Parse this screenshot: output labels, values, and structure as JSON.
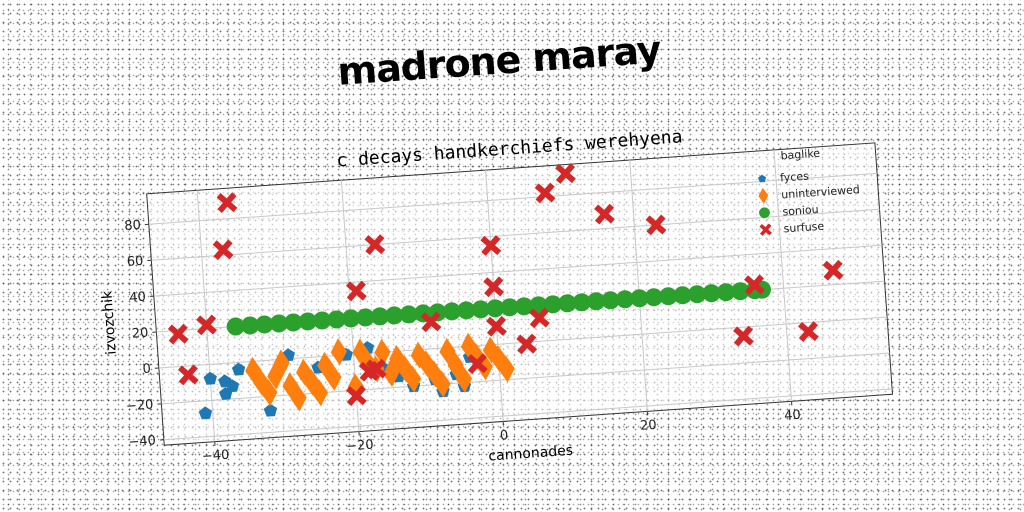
{
  "header": {
    "title": "madrone maray"
  },
  "chart_data": {
    "type": "scatter",
    "title": "c decays handkerchiefs werehyena",
    "xlabel": "cannonades",
    "ylabel": "izvozchik",
    "xlim": [
      -47,
      54
    ],
    "ylim": [
      -43,
      97
    ],
    "xticks": [
      -40,
      -20,
      0,
      20,
      40
    ],
    "yticks": [
      -40,
      -20,
      0,
      20,
      40,
      60,
      80
    ],
    "grid": true,
    "legend": {
      "title": "baglike",
      "position": "top-right",
      "entries": [
        "fyces",
        "uninterviewed",
        "soniou",
        "surfuse"
      ]
    },
    "series": [
      {
        "name": "fyces",
        "marker": "pentagon",
        "color": "#1f77b4",
        "points": [
          [
            -41,
            -27
          ],
          [
            -40,
            -8
          ],
          [
            -38,
            -10
          ],
          [
            -38,
            -17
          ],
          [
            -37,
            -13
          ],
          [
            -36,
            -4
          ],
          [
            -32,
            -28
          ],
          [
            -30,
            -3
          ],
          [
            -29,
            2
          ],
          [
            -27,
            -9
          ],
          [
            -25,
            -6
          ],
          [
            -23,
            -12
          ],
          [
            -21,
            0
          ],
          [
            -20,
            -18
          ],
          [
            -18,
            3
          ],
          [
            -16,
            -9
          ],
          [
            -14,
            -14
          ],
          [
            -12,
            -20
          ],
          [
            -9,
            -17
          ],
          [
            -8,
            -24
          ],
          [
            -6,
            -15
          ],
          [
            -5,
            -22
          ],
          [
            -4,
            -6
          ]
        ]
      },
      {
        "name": "uninterviewed",
        "marker": "diamond",
        "color": "#ff7f0e",
        "points": [
          [
            -34,
            -5
          ],
          [
            -33,
            -12
          ],
          [
            -32,
            -18
          ],
          [
            -31,
            -9
          ],
          [
            -30,
            -2
          ],
          [
            -29,
            -15
          ],
          [
            -28,
            -22
          ],
          [
            -27,
            -8
          ],
          [
            -26,
            -14
          ],
          [
            -25,
            -20
          ],
          [
            -24,
            -5
          ],
          [
            -23,
            -12
          ],
          [
            -22,
            2
          ],
          [
            -20,
            -18
          ],
          [
            -18,
            -6
          ],
          [
            -16,
            0
          ],
          [
            -15,
            -12
          ],
          [
            -14,
            -4
          ],
          [
            -13,
            -10
          ],
          [
            -12,
            -16
          ],
          [
            -11,
            -3
          ],
          [
            -10,
            -8
          ],
          [
            -9,
            -14
          ],
          [
            -8,
            -20
          ],
          [
            -7,
            -2
          ],
          [
            -6,
            -10
          ],
          [
            -5,
            -18
          ],
          [
            -4,
            0
          ],
          [
            -3,
            -6
          ],
          [
            -2,
            -12
          ],
          [
            -1,
            -3
          ],
          [
            0,
            -8
          ],
          [
            1,
            -14
          ],
          [
            -17,
            -9
          ],
          [
            -19,
            1
          ]
        ]
      },
      {
        "name": "soniou",
        "marker": "circle",
        "color": "#2ca02c",
        "points": [
          [
            -36,
            20
          ],
          [
            -34,
            20
          ],
          [
            -32,
            20
          ],
          [
            -30,
            20
          ],
          [
            -28,
            20
          ],
          [
            -26,
            20
          ],
          [
            -24,
            20
          ],
          [
            -22,
            20
          ],
          [
            -20,
            20
          ],
          [
            -18,
            20
          ],
          [
            -16,
            20
          ],
          [
            -14,
            20
          ],
          [
            -12,
            20
          ],
          [
            -10,
            20
          ],
          [
            -8,
            20
          ],
          [
            -6,
            20
          ],
          [
            -4,
            20
          ],
          [
            -2,
            20
          ],
          [
            0,
            20
          ],
          [
            2,
            20
          ],
          [
            4,
            20
          ],
          [
            6,
            20
          ],
          [
            8,
            20
          ],
          [
            10,
            20
          ],
          [
            12,
            20
          ],
          [
            14,
            20
          ],
          [
            16,
            20
          ],
          [
            18,
            20
          ],
          [
            20,
            20
          ],
          [
            22,
            20
          ],
          [
            24,
            20
          ],
          [
            26,
            20
          ],
          [
            28,
            20
          ],
          [
            30,
            20
          ],
          [
            32,
            20
          ],
          [
            34,
            20
          ],
          [
            36,
            20
          ],
          [
            37,
            20
          ]
        ]
      },
      {
        "name": "surfuse",
        "marker": "x",
        "color": "#d62728",
        "points": [
          [
            -44,
            18
          ],
          [
            -43,
            -5
          ],
          [
            -40,
            22
          ],
          [
            -37,
            63
          ],
          [
            -36,
            89
          ],
          [
            -20,
            -23
          ],
          [
            -19,
            35
          ],
          [
            -18,
            -10
          ],
          [
            -17,
            -9
          ],
          [
            -16,
            60
          ],
          [
            -9,
            15
          ],
          [
            -3,
            -10
          ],
          [
            0,
            10
          ],
          [
            0,
            32
          ],
          [
            0,
            55
          ],
          [
            4,
            -1
          ],
          [
            6,
            13
          ],
          [
            8,
            82
          ],
          [
            11,
            92
          ],
          [
            16,
            68
          ],
          [
            23,
            60
          ],
          [
            34,
            -5
          ],
          [
            36,
            23
          ],
          [
            43,
            -5
          ],
          [
            47,
            28
          ]
        ]
      }
    ]
  }
}
